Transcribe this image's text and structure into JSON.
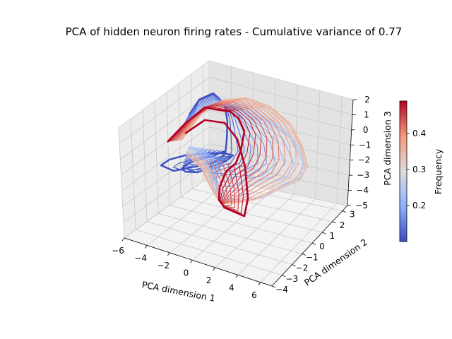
{
  "chart_data": {
    "type": "3d-line",
    "title": "PCA of hidden neuron firing rates - Cumulative variance of 0.77",
    "xlabel": "PCA dimension 1",
    "ylabel": "PCA dimension 2",
    "zlabel": "PCA dimension 3",
    "xlim": [
      -6,
      7
    ],
    "ylim": [
      -4,
      3.5
    ],
    "zlim": [
      -5,
      2
    ],
    "x_ticks": [
      "−6",
      "−4",
      "−2",
      "0",
      "2",
      "4",
      "6"
    ],
    "y_ticks": [
      "−4",
      "−3",
      "−2",
      "−1",
      "0",
      "1",
      "2",
      "3"
    ],
    "z_ticks": [
      "−5",
      "−4",
      "−3",
      "−2",
      "−1",
      "0",
      "1",
      "2"
    ],
    "grid": true,
    "colormap": "coolwarm",
    "colorbar": {
      "label": "Frequency",
      "range": [
        0.1,
        0.49
      ],
      "ticks": [
        "0.2",
        "0.3",
        "0.4"
      ],
      "tick_values": [
        0.2,
        0.3,
        0.4
      ]
    },
    "series": {
      "count": 32,
      "frequency_min": 0.1,
      "frequency_max": 0.49
    },
    "colors": {
      "low": "#3b4cc0",
      "mid": "#dddddd",
      "high": "#b40426",
      "pane_left": "#ececec",
      "pane_right": "#e3e3e3",
      "pane_floor": "#f3f3f3",
      "grid": "#c8c8c8"
    }
  }
}
